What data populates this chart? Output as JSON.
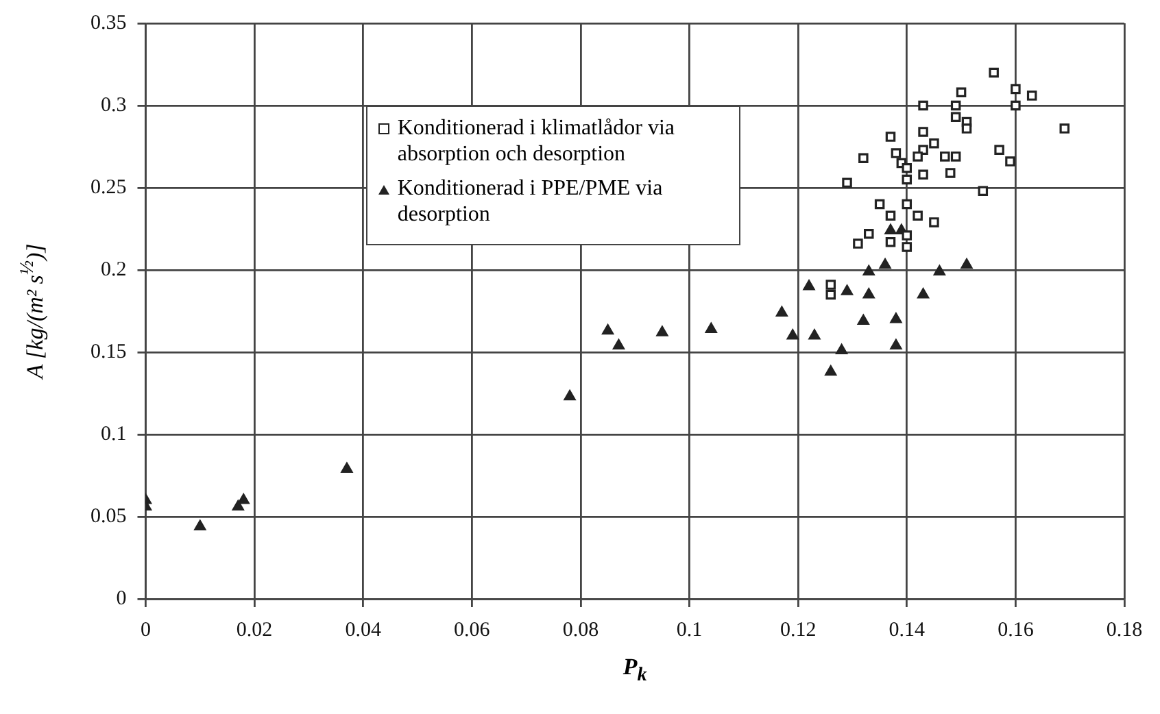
{
  "chart_data": {
    "type": "scatter",
    "xlabel": "P$_{k}$",
    "ylabel": "A [kg/(m² s$^{½}$)]",
    "xlim": [
      0,
      0.18
    ],
    "xticks": [
      0,
      0.02,
      0.04,
      0.06,
      0.08,
      0.1,
      0.12,
      0.14,
      0.16,
      0.18
    ],
    "ylim": [
      0,
      0.35
    ],
    "yticks": [
      0,
      0.05,
      0.1,
      0.15,
      0.2,
      0.25,
      0.3,
      0.35
    ],
    "grid": true,
    "legend": "top left",
    "series": [
      {
        "name": "Konditionerad i klimatlådor via absorption och desorption",
        "type": "scatter",
        "marker": "square",
        "color": "#222222",
        "x": [
          0.156,
          0.15,
          0.16,
          0.163,
          0.16,
          0.143,
          0.149,
          0.149,
          0.151,
          0.151,
          0.169,
          0.137,
          0.143,
          0.145,
          0.143,
          0.138,
          0.142,
          0.147,
          0.149,
          0.157,
          0.159,
          0.139,
          0.14,
          0.14,
          0.143,
          0.148,
          0.154,
          0.135,
          0.14,
          0.137,
          0.142,
          0.145,
          0.14,
          0.137,
          0.14,
          0.132,
          0.129,
          0.133,
          0.131,
          0.126,
          0.126
        ],
        "values": [
          0.32,
          0.308,
          0.31,
          0.306,
          0.3,
          0.3,
          0.3,
          0.293,
          0.29,
          0.286,
          0.286,
          0.281,
          0.284,
          0.277,
          0.273,
          0.271,
          0.269,
          0.269,
          0.269,
          0.273,
          0.266,
          0.265,
          0.262,
          0.255,
          0.258,
          0.259,
          0.248,
          0.24,
          0.24,
          0.233,
          0.233,
          0.229,
          0.221,
          0.217,
          0.214,
          0.268,
          0.253,
          0.222,
          0.216,
          0.191,
          0.185
        ]
      },
      {
        "name": "Konditionerad i PPE/PME via desorption",
        "type": "scatter",
        "marker": "triangle",
        "color": "#222222",
        "x": [
          0,
          0,
          0.01,
          0.017,
          0.018,
          0.037,
          0.078,
          0.085,
          0.087,
          0.095,
          0.104,
          0.117,
          0.119,
          0.122,
          0.123,
          0.126,
          0.128,
          0.129,
          0.133,
          0.133,
          0.132,
          0.136,
          0.137,
          0.139,
          0.138,
          0.138,
          0.143,
          0.146,
          0.151
        ],
        "values": [
          0.06,
          0.056,
          0.044,
          0.056,
          0.06,
          0.079,
          0.123,
          0.163,
          0.154,
          0.162,
          0.164,
          0.174,
          0.16,
          0.19,
          0.16,
          0.138,
          0.151,
          0.187,
          0.199,
          0.185,
          0.169,
          0.203,
          0.224,
          0.224,
          0.17,
          0.154,
          0.185,
          0.199,
          0.203
        ]
      }
    ]
  }
}
